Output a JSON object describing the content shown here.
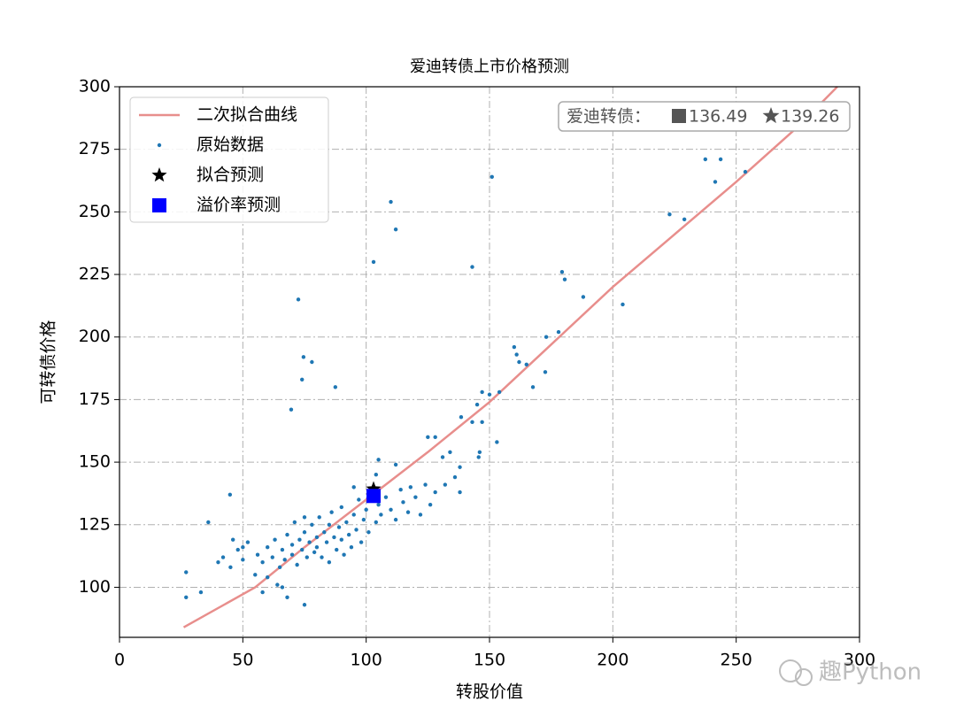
{
  "chart_data": {
    "type": "scatter",
    "title": "爱迪转债上市价格预测",
    "xlabel": "转股价值",
    "ylabel": "可转债价格",
    "xlim": [
      0,
      300
    ],
    "ylim": [
      80,
      300
    ],
    "xticks": [
      0,
      50,
      100,
      150,
      200,
      250,
      300
    ],
    "yticks": [
      100,
      125,
      150,
      175,
      200,
      225,
      250,
      275,
      300
    ],
    "grid": true,
    "legend": "upper left",
    "series": [
      {
        "name": "二次拟合曲线",
        "marker": "line",
        "color": "#e88e8c",
        "x": [
          26,
          55,
          75,
          100,
          125,
          150,
          175,
          200,
          225,
          250,
          275,
          291
        ],
        "values": [
          84,
          100,
          116,
          135,
          154,
          174,
          197,
          220,
          241,
          262,
          284,
          300
        ]
      },
      {
        "name": "原始数据",
        "marker": "dot",
        "color": "#1f77b4",
        "x": [
          151,
          110,
          112,
          103,
          143,
          72.5,
          74.6,
          78,
          74,
          87.5,
          69.6,
          237.5,
          243.7,
          241.5,
          253.7,
          223,
          229,
          179.4,
          180.5,
          188,
          204,
          178,
          173,
          160,
          161,
          162,
          165,
          154,
          147,
          167.6,
          172.6,
          138.5,
          145,
          143,
          147,
          150,
          153,
          146,
          145.6,
          134,
          131,
          128,
          125,
          138,
          138,
          136,
          132,
          44.8,
          36,
          27,
          27,
          33,
          75,
          112,
          105,
          40,
          42,
          45,
          48,
          50,
          52,
          55,
          56,
          58,
          60,
          60,
          62,
          63,
          65,
          66,
          67,
          68,
          70,
          70,
          72,
          73,
          74,
          75,
          76,
          77,
          78,
          79,
          80,
          80,
          81,
          82,
          83,
          84,
          85,
          85,
          86,
          87,
          88,
          89,
          90,
          90,
          91,
          92,
          93,
          94,
          95,
          96,
          97,
          98,
          99,
          100,
          101,
          102,
          104,
          105,
          106,
          108,
          110,
          112,
          114,
          115,
          117,
          118,
          120,
          122,
          124,
          126,
          128,
          64,
          58,
          71,
          75,
          95,
          104,
          66,
          46,
          50,
          68
        ],
        "values": [
          264,
          254,
          243,
          230,
          228,
          215,
          192,
          190,
          183,
          180,
          171,
          271,
          271,
          262,
          266,
          249,
          247,
          226,
          223,
          216,
          213,
          202,
          200,
          196,
          193,
          190,
          189,
          178,
          178,
          180,
          186,
          168,
          173,
          166,
          166,
          177,
          158,
          154,
          152,
          154,
          152,
          160,
          160,
          148,
          138,
          144,
          141,
          137,
          126,
          106,
          96,
          98,
          93,
          149,
          151,
          110,
          112,
          108,
          115,
          111,
          118,
          105,
          113,
          110,
          116,
          104,
          112,
          119,
          108,
          115,
          111,
          121,
          113,
          117,
          109,
          119,
          115,
          122,
          112,
          118,
          125,
          114,
          120,
          116,
          128,
          112,
          122,
          118,
          125,
          110,
          130,
          120,
          115,
          124,
          119,
          132,
          113,
          126,
          121,
          116,
          129,
          123,
          135,
          118,
          127,
          131,
          122,
          138,
          126,
          133,
          129,
          136,
          131,
          127,
          139,
          134,
          130,
          140,
          136,
          129,
          141,
          133,
          138,
          101,
          98,
          126,
          128,
          140,
          145,
          100,
          119,
          116,
          96
        ]
      },
      {
        "name": "拟合预测",
        "marker": "star",
        "color": "#000000",
        "x": [
          103
        ],
        "values": [
          139.26
        ]
      },
      {
        "name": "溢价率预测",
        "marker": "square",
        "color": "#0000ff",
        "x": [
          103
        ],
        "values": [
          136.49
        ]
      }
    ],
    "annotation": {
      "label": "爱迪转债：",
      "square_value": 136.49,
      "star_value": 139.26
    },
    "watermark": "趣Python"
  }
}
